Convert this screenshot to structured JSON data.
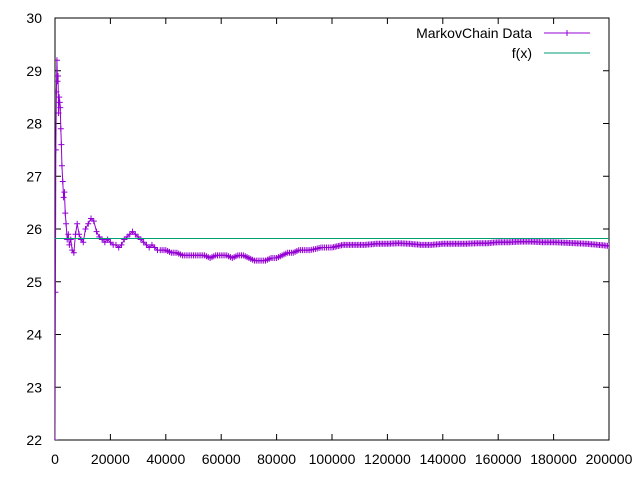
{
  "chart_data": {
    "type": "line",
    "title": "",
    "xlabel": "",
    "ylabel": "",
    "xlim": [
      0,
      200000
    ],
    "ylim": [
      22,
      30
    ],
    "xticks": [
      0,
      20000,
      40000,
      60000,
      80000,
      100000,
      120000,
      140000,
      160000,
      180000,
      200000
    ],
    "yticks": [
      22,
      23,
      24,
      25,
      26,
      27,
      28,
      29,
      30
    ],
    "grid": false,
    "legend_position": "top-right",
    "series": [
      {
        "name": "MarkovChain Data",
        "style": "linespoints",
        "marker": "plus",
        "color": "#9400d3",
        "x": [
          0,
          150,
          300,
          500,
          700,
          900,
          1100,
          1300,
          1500,
          1700,
          1900,
          2100,
          2300,
          2500,
          2800,
          3100,
          3400,
          3700,
          4000,
          4400,
          4800,
          5200,
          5700,
          6200,
          6800,
          7400,
          8000,
          8700,
          9400,
          10200,
          11000,
          12000,
          13000,
          14000,
          15000,
          16000,
          17000,
          18000,
          19000,
          20000,
          21000,
          22000,
          23000,
          24000,
          25000,
          26000,
          27000,
          28000,
          29000,
          30000,
          31000,
          32000,
          33000,
          34000,
          35000,
          36000,
          37000,
          38000,
          40000,
          42000,
          44000,
          46000,
          48000,
          50000,
          52000,
          54000,
          56000,
          58000,
          60000,
          62000,
          64000,
          66000,
          68000,
          70000,
          72000,
          74000,
          76000,
          78000,
          80000,
          82000,
          84000,
          86000,
          88000,
          90000,
          92000,
          94000,
          96000,
          98000,
          100000,
          104000,
          108000,
          112000,
          116000,
          120000,
          124000,
          128000,
          132000,
          136000,
          140000,
          144000,
          148000,
          152000,
          156000,
          160000,
          164000,
          168000,
          172000,
          176000,
          180000,
          184000,
          188000,
          192000,
          196000,
          200000
        ],
        "y": [
          22.0,
          24.8,
          27.5,
          28.6,
          29.2,
          28.8,
          28.9,
          28.2,
          28.5,
          28.4,
          28.3,
          27.9,
          27.6,
          27.2,
          26.9,
          26.6,
          26.7,
          26.3,
          26.1,
          25.8,
          25.9,
          25.7,
          25.8,
          25.6,
          25.55,
          25.9,
          26.1,
          25.9,
          25.8,
          25.75,
          26.0,
          26.1,
          26.2,
          26.15,
          25.95,
          25.85,
          25.8,
          25.75,
          25.8,
          25.75,
          25.7,
          25.7,
          25.65,
          25.7,
          25.8,
          25.85,
          25.9,
          25.95,
          25.9,
          25.85,
          25.8,
          25.75,
          25.7,
          25.65,
          25.7,
          25.65,
          25.6,
          25.6,
          25.6,
          25.55,
          25.55,
          25.5,
          25.5,
          25.5,
          25.5,
          25.5,
          25.45,
          25.5,
          25.5,
          25.5,
          25.45,
          25.5,
          25.5,
          25.45,
          25.4,
          25.4,
          25.4,
          25.45,
          25.45,
          25.5,
          25.55,
          25.55,
          25.6,
          25.6,
          25.6,
          25.62,
          25.65,
          25.65,
          25.65,
          25.7,
          25.7,
          25.7,
          25.72,
          25.72,
          25.73,
          25.72,
          25.7,
          25.7,
          25.72,
          25.72,
          25.72,
          25.73,
          25.73,
          25.75,
          25.75,
          25.76,
          25.76,
          25.75,
          25.75,
          25.74,
          25.73,
          25.72,
          25.7,
          25.68
        ]
      },
      {
        "name": "f(x)",
        "style": "line",
        "color": "#009e73",
        "x": [
          0,
          200000
        ],
        "y": [
          25.82,
          25.82
        ]
      }
    ]
  }
}
